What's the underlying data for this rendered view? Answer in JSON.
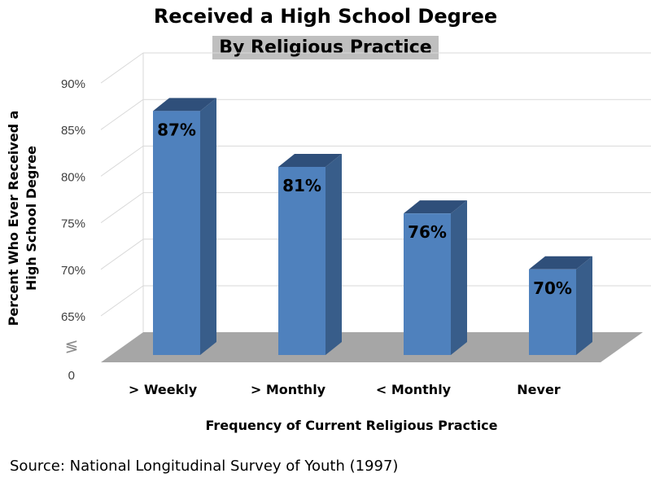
{
  "chart_data": {
    "type": "bar",
    "title": "Received a High School Degree",
    "subtitle": "By Religious Practice",
    "xlabel": "Frequency of Current Religious Practice",
    "ylabel_line1": "Percent Who Ever Received a",
    "ylabel_line2": "High School Degree",
    "categories": [
      "> Weekly",
      "> Monthly",
      "< Monthly",
      "Never"
    ],
    "values": [
      87,
      81,
      76,
      70
    ],
    "data_labels": [
      "87%",
      "81%",
      "76%",
      "70%"
    ],
    "yticks": [
      65,
      70,
      75,
      80,
      85,
      90
    ],
    "ytick_labels": [
      "65%",
      "70%",
      "75%",
      "80%",
      "85%",
      "90%"
    ],
    "axis_break_symbol": "≶",
    "zero_label": "0",
    "ylim": [
      65,
      90
    ],
    "grid": true,
    "bar_color": "#4f81bd",
    "bar_side_color": "#385d8a",
    "bar_top_color": "#2f4f7a",
    "floor_color": "#a6a6a6"
  },
  "source": "Source:  National Longitudinal Survey of Youth (1997)"
}
